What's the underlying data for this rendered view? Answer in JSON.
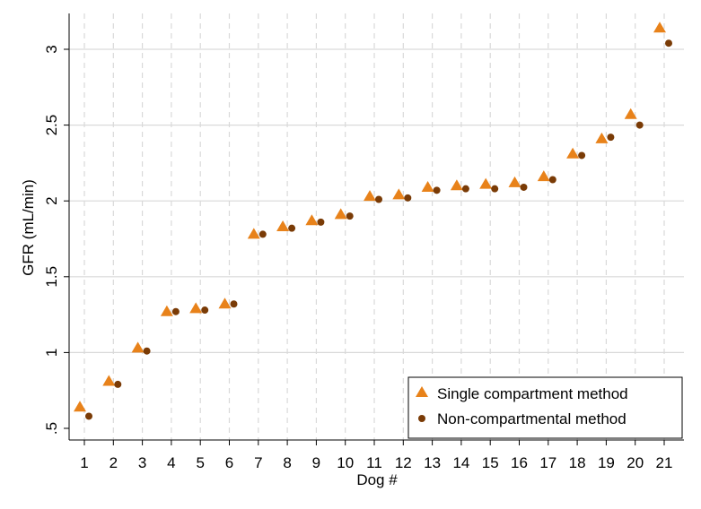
{
  "chart_data": {
    "type": "scatter",
    "xlabel": "Dog #",
    "ylabel": "GFR (mL/min)",
    "categories": [
      "1",
      "2",
      "3",
      "4",
      "5",
      "6",
      "7",
      "8",
      "9",
      "10",
      "11",
      "12",
      "13",
      "14",
      "15",
      "16",
      "17",
      "18",
      "19",
      "20",
      "21"
    ],
    "ylim": [
      0.5,
      3.2
    ],
    "yticks": [
      0.5,
      1,
      1.5,
      2,
      2.5,
      3
    ],
    "ytick_labels": [
      ".5",
      "1",
      "1.5",
      "2",
      "2.5",
      "3"
    ],
    "grid": true,
    "legend_position": "bottom-right",
    "series": [
      {
        "name": "Single compartment method",
        "marker": "triangle",
        "color": "#e8821a",
        "values": [
          0.64,
          0.81,
          1.03,
          1.27,
          1.29,
          1.32,
          1.78,
          1.83,
          1.87,
          1.91,
          2.03,
          2.04,
          2.09,
          2.1,
          2.11,
          2.12,
          2.16,
          2.31,
          2.41,
          2.57,
          3.14
        ]
      },
      {
        "name": "Non-compartmental method",
        "marker": "circle",
        "color": "#7a3b06",
        "values": [
          0.58,
          0.79,
          1.01,
          1.27,
          1.28,
          1.32,
          1.78,
          1.82,
          1.86,
          1.9,
          2.01,
          2.02,
          2.07,
          2.08,
          2.08,
          2.09,
          2.14,
          2.3,
          2.42,
          2.5,
          3.04
        ]
      }
    ]
  }
}
